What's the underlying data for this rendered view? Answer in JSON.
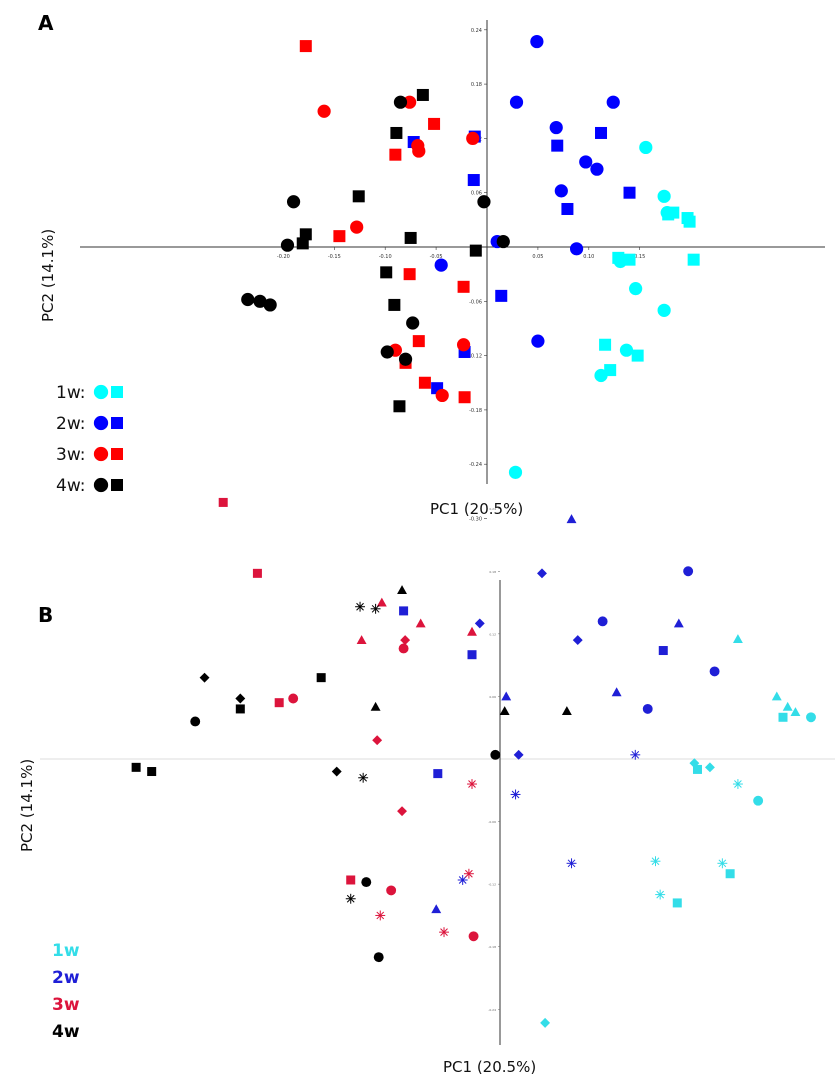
{
  "colors": {
    "1w": "#00ffff",
    "2w": "#0000ff",
    "3w": "#ff0000",
    "4w": "#000000",
    "1w_b": "#33dde8",
    "2w_b": "#1f1fd6",
    "3w_b": "#dc143c",
    "4w_b": "#000000"
  },
  "chart_data": [
    {
      "type": "scatter",
      "panel": "A",
      "xlabel": "PC1 (20.5%)",
      "ylabel": "PC2 (14.1%)",
      "x_ticks": [
        "-0.20",
        "-0.15",
        "-0.10",
        "-0.05",
        "0.05",
        "0.10",
        "0.15"
      ],
      "y_ticks": [
        "0.24",
        "0.18",
        "0.12",
        "0.06",
        "-0.06",
        "-0.12",
        "-0.18",
        "-0.24",
        "-0.30"
      ],
      "xlim": [
        -0.24,
        0.2
      ],
      "ylim": [
        -0.3,
        0.3
      ],
      "legend": [
        {
          "label": "1w:",
          "group": "1w"
        },
        {
          "label": "2w:",
          "group": "2w"
        },
        {
          "label": "3w:",
          "group": "3w"
        },
        {
          "label": "4w:",
          "group": "4w"
        }
      ],
      "series": [
        {
          "group": "1w",
          "marker": "circle",
          "x": [
            0.156,
            0.174,
            0.177,
            0.131,
            0.146,
            0.174,
            0.137,
            0.112,
            0.028
          ],
          "y": [
            0.11,
            0.056,
            0.038,
            -0.016,
            -0.046,
            -0.07,
            -0.114,
            -0.142,
            -0.249
          ]
        },
        {
          "group": "1w",
          "marker": "square",
          "x": [
            0.183,
            0.178,
            0.197,
            0.199,
            0.129,
            0.14,
            0.203,
            0.116,
            0.121,
            0.148
          ],
          "y": [
            0.038,
            0.036,
            0.032,
            0.028,
            -0.012,
            -0.014,
            -0.014,
            -0.108,
            -0.136,
            -0.12
          ]
        },
        {
          "group": "2w",
          "marker": "circle",
          "x": [
            0.049,
            0.029,
            0.124,
            0.068,
            0.097,
            0.073,
            0.108,
            0.01,
            0.088,
            -0.045,
            0.05
          ],
          "y": [
            0.227,
            0.16,
            0.16,
            0.132,
            0.094,
            0.062,
            0.086,
            0.006,
            -0.002,
            -0.02,
            -0.104
          ]
        },
        {
          "group": "2w",
          "marker": "square",
          "x": [
            0.112,
            0.069,
            -0.012,
            0.14,
            0.079,
            -0.013,
            0.014,
            -0.022,
            -0.049,
            -0.072
          ],
          "y": [
            0.126,
            0.112,
            0.122,
            0.06,
            0.042,
            0.074,
            -0.054,
            -0.116,
            -0.156,
            0.116
          ]
        },
        {
          "group": "3w",
          "marker": "circle",
          "x": [
            -0.16,
            -0.076,
            -0.068,
            -0.067,
            -0.014,
            -0.128,
            -0.023,
            -0.09,
            -0.044
          ],
          "y": [
            0.15,
            0.16,
            0.112,
            0.106,
            0.12,
            0.022,
            -0.108,
            -0.114,
            -0.164
          ]
        },
        {
          "group": "3w",
          "marker": "square",
          "x": [
            -0.178,
            -0.052,
            -0.09,
            -0.145,
            -0.076,
            -0.023,
            -0.067,
            -0.08,
            -0.061,
            -0.022
          ],
          "y": [
            0.222,
            0.136,
            0.102,
            0.012,
            -0.03,
            -0.044,
            -0.104,
            -0.128,
            -0.15,
            -0.166
          ]
        },
        {
          "group": "4w",
          "marker": "circle",
          "x": [
            -0.085,
            -0.19,
            -0.196,
            -0.223,
            -0.003,
            -0.073,
            -0.098,
            -0.08,
            -0.235,
            -0.213,
            0.016
          ],
          "y": [
            0.16,
            0.05,
            0.002,
            -0.06,
            0.05,
            -0.084,
            -0.116,
            -0.124,
            -0.058,
            -0.064,
            0.006
          ]
        },
        {
          "group": "4w",
          "marker": "square",
          "x": [
            -0.063,
            -0.089,
            -0.126,
            -0.178,
            -0.181,
            -0.075,
            -0.011,
            -0.099,
            -0.091,
            -0.086
          ],
          "y": [
            0.168,
            0.126,
            0.056,
            0.014,
            0.004,
            0.01,
            -0.004,
            -0.028,
            -0.064,
            -0.176
          ]
        }
      ]
    },
    {
      "type": "scatter",
      "panel": "B",
      "xlabel": "PC1 (20.5%)",
      "ylabel": "PC2 (14.1%)",
      "y_ticks": [
        "0.24",
        "0.18",
        "0.12",
        "0.06",
        "-0.06",
        "-0.12",
        "-0.18",
        "-0.24"
      ],
      "xlim": [
        -0.24,
        0.2
      ],
      "ylim": [
        -0.3,
        0.3
      ],
      "legend": [
        {
          "label": "1w",
          "group": "1w"
        },
        {
          "label": "2w",
          "group": "2w"
        },
        {
          "label": "3w",
          "group": "3w"
        },
        {
          "label": "4w",
          "group": "4w"
        }
      ],
      "series": [
        {
          "group": "1w",
          "marker": "triangle",
          "x": [
            0.153,
            0.178,
            0.185,
            0.19
          ],
          "y": [
            0.115,
            0.06,
            0.05,
            0.045
          ]
        },
        {
          "group": "1w",
          "marker": "square",
          "x": [
            0.182,
            0.127,
            0.148,
            0.114
          ],
          "y": [
            0.04,
            -0.01,
            -0.11,
            -0.138
          ]
        },
        {
          "group": "1w",
          "marker": "diamond",
          "x": [
            0.125,
            0.135,
            0.029
          ],
          "y": [
            -0.004,
            -0.008,
            -0.253
          ]
        },
        {
          "group": "1w",
          "marker": "circle",
          "x": [
            0.166,
            0.2
          ],
          "y": [
            -0.04,
            0.04
          ]
        },
        {
          "group": "1w",
          "marker": "star",
          "x": [
            0.153,
            0.1,
            0.143,
            0.103
          ],
          "y": [
            -0.024,
            -0.098,
            -0.1,
            -0.13
          ]
        },
        {
          "group": "2w",
          "marker": "triangle",
          "x": [
            0.046,
            0.115,
            0.075,
            -0.041,
            0.004
          ],
          "y": [
            0.23,
            0.13,
            0.064,
            -0.144,
            0.06
          ]
        },
        {
          "group": "2w",
          "marker": "circle",
          "x": [
            0.121,
            0.066,
            0.138,
            0.095
          ],
          "y": [
            0.18,
            0.132,
            0.084,
            0.048
          ]
        },
        {
          "group": "2w",
          "marker": "diamond",
          "x": [
            0.027,
            0.05,
            -0.013,
            0.012
          ],
          "y": [
            0.178,
            0.114,
            0.13,
            0.004
          ]
        },
        {
          "group": "2w",
          "marker": "square",
          "x": [
            -0.062,
            0.105,
            -0.018,
            -0.04
          ],
          "y": [
            0.142,
            0.104,
            0.1,
            -0.014
          ]
        },
        {
          "group": "2w",
          "marker": "star",
          "x": [
            0.087,
            0.01,
            0.046,
            -0.024
          ],
          "y": [
            0.004,
            -0.034,
            -0.1,
            -0.116
          ]
        },
        {
          "group": "3w",
          "marker": "square",
          "x": [
            -0.178,
            -0.156,
            -0.142,
            -0.096
          ],
          "y": [
            0.246,
            0.178,
            0.054,
            -0.116
          ]
        },
        {
          "group": "3w",
          "marker": "triangle",
          "x": [
            -0.076,
            -0.089,
            -0.051,
            -0.018
          ],
          "y": [
            0.15,
            0.114,
            0.13,
            0.122
          ]
        },
        {
          "group": "3w",
          "marker": "circle",
          "x": [
            -0.062,
            -0.133,
            -0.07,
            -0.017
          ],
          "y": [
            0.106,
            0.058,
            -0.126,
            -0.17
          ]
        },
        {
          "group": "3w",
          "marker": "diamond",
          "x": [
            -0.061,
            -0.079,
            -0.063
          ],
          "y": [
            0.114,
            0.018,
            -0.05
          ]
        },
        {
          "group": "3w",
          "marker": "star",
          "x": [
            -0.018,
            -0.02,
            -0.077,
            -0.036
          ],
          "y": [
            -0.024,
            -0.11,
            -0.15,
            -0.166
          ]
        },
        {
          "group": "4w",
          "marker": "triangle",
          "x": [
            -0.063,
            -0.08,
            0.003,
            0.043
          ],
          "y": [
            0.162,
            0.05,
            0.046,
            0.046
          ]
        },
        {
          "group": "4w",
          "marker": "square",
          "x": [
            -0.115,
            -0.167,
            -0.234,
            -0.224
          ],
          "y": [
            0.078,
            0.048,
            -0.008,
            -0.012
          ]
        },
        {
          "group": "4w",
          "marker": "diamond",
          "x": [
            -0.19,
            -0.167,
            -0.105
          ],
          "y": [
            0.078,
            0.058,
            -0.012
          ]
        },
        {
          "group": "4w",
          "marker": "circle",
          "x": [
            -0.196,
            -0.086,
            -0.003,
            -0.078
          ],
          "y": [
            0.036,
            -0.118,
            0.004,
            -0.19
          ]
        },
        {
          "group": "4w",
          "marker": "star",
          "x": [
            -0.09,
            -0.08,
            -0.088,
            -0.096
          ],
          "y": [
            0.146,
            0.144,
            -0.018,
            -0.134
          ]
        }
      ]
    }
  ]
}
